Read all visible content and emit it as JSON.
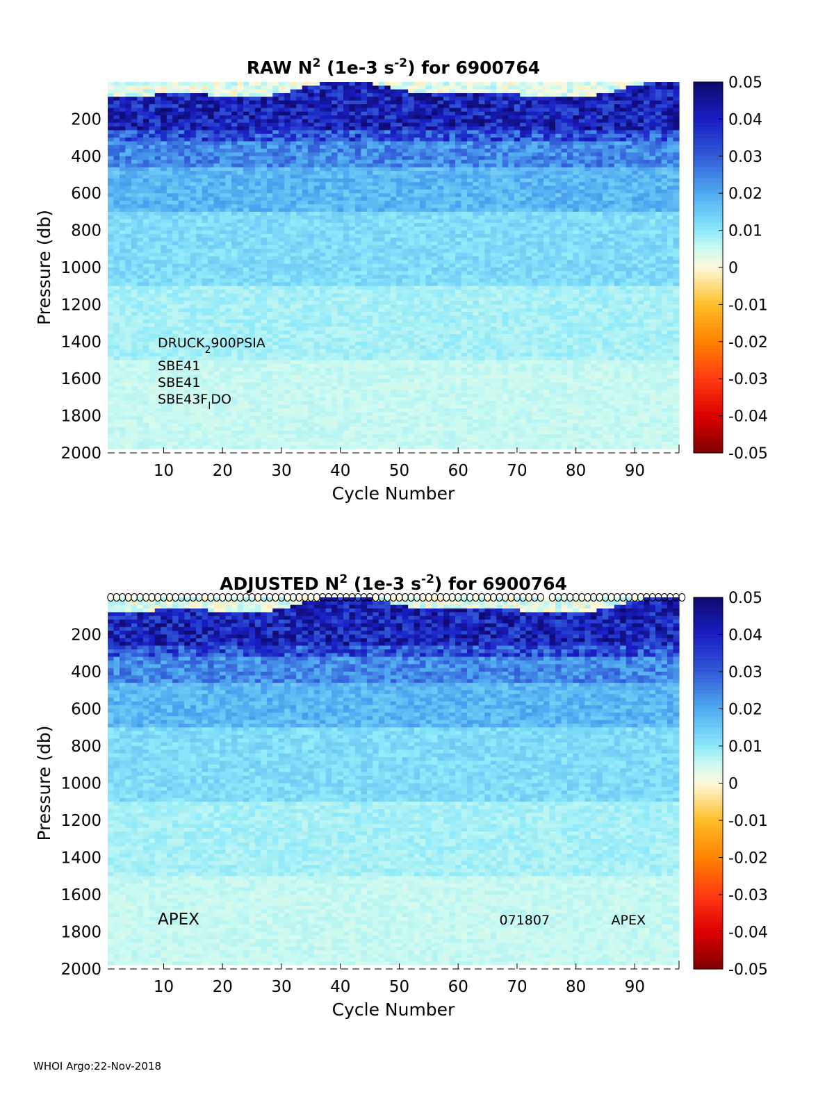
{
  "chart_data": [
    {
      "type": "heatmap",
      "title": {
        "prefix": "RAW N",
        "sup1": "2",
        "mid": " (1e-3 s",
        "sup2": "-2",
        "suffix": ") for 6900764"
      },
      "xlabel": "Cycle Number",
      "ylabel": "Pressure (db)",
      "xlim": [
        1,
        97
      ],
      "ylim": [
        0,
        2000
      ],
      "y_reversed": true,
      "xticks": [
        10,
        20,
        30,
        40,
        50,
        60,
        70,
        80,
        90
      ],
      "yticks": [
        200,
        400,
        600,
        800,
        1000,
        1200,
        1400,
        1600,
        1800,
        2000
      ],
      "colorbar": {
        "min": -0.05,
        "max": 0.05,
        "ticks": [
          "0.05",
          "0.04",
          "0.03",
          "0.02",
          "0.01",
          "0",
          "-0.01",
          "-0.02",
          "-0.03",
          "-0.04",
          "-0.05"
        ],
        "colormap": "blue-cyan-white-yellow-red"
      },
      "annotations": [
        {
          "text": "DRUCK",
          "sub": "2",
          "after": "900PSIA",
          "cycle": 9,
          "pressure": 1430
        },
        {
          "text": "SBE41",
          "sub": "",
          "after": "",
          "cycle": 9,
          "pressure": 1555
        },
        {
          "text": "SBE41",
          "sub": "",
          "after": "",
          "cycle": 9,
          "pressure": 1645
        },
        {
          "text": "SBE43F",
          "sub": "I",
          "after": "DO",
          "cycle": 9,
          "pressure": 1735
        }
      ],
      "profile_markers": false
    },
    {
      "type": "heatmap",
      "title": {
        "prefix": "ADJUSTED N",
        "sup1": "2",
        "mid": " (1e-3 s",
        "sup2": "-2",
        "suffix": ") for 6900764"
      },
      "xlabel": "Cycle Number",
      "ylabel": "Pressure (db)",
      "xlim": [
        1,
        97
      ],
      "ylim": [
        0,
        2000
      ],
      "y_reversed": true,
      "xticks": [
        10,
        20,
        30,
        40,
        50,
        60,
        70,
        80,
        90
      ],
      "yticks": [
        200,
        400,
        600,
        800,
        1000,
        1200,
        1400,
        1600,
        1800,
        2000
      ],
      "colorbar": {
        "min": -0.05,
        "max": 0.05,
        "ticks": [
          "0.05",
          "0.04",
          "0.03",
          "0.02",
          "0.01",
          "0",
          "-0.01",
          "-0.02",
          "-0.03",
          "-0.04",
          "-0.05"
        ],
        "colormap": "blue-cyan-white-yellow-red"
      },
      "annotations": [
        {
          "text": "APEX",
          "sub": "",
          "after": "",
          "cycle": 9,
          "pressure": 1760,
          "size": "large"
        },
        {
          "text": "071807",
          "sub": "",
          "after": "",
          "cycle": 67,
          "pressure": 1760
        },
        {
          "text": "APEX",
          "sub": "",
          "after": "",
          "cycle": 86,
          "pressure": 1760
        }
      ],
      "profile_markers": true
    }
  ],
  "footer": "WHOI Argo:22-Nov-2018"
}
